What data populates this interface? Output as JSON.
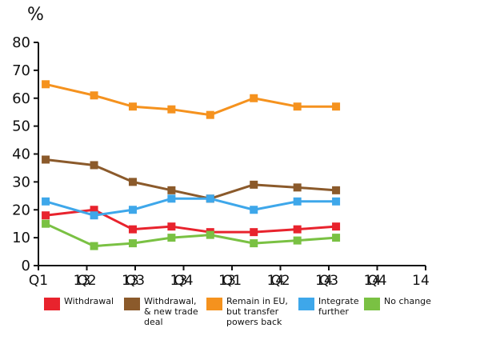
{
  "unit_label": "%",
  "chart_data": {
    "type": "line",
    "categories": [
      "Q1 13",
      "Q2 13",
      "Q3 13",
      "Q4 13",
      "Q1 14",
      "Q2 14",
      "Q3 14",
      "Q4 14"
    ],
    "ylim": [
      0,
      80
    ],
    "yticks": [
      0,
      10,
      20,
      30,
      40,
      50,
      60,
      70,
      80
    ],
    "grid": false,
    "legend_position": "bottom",
    "series": [
      {
        "name": "Withdrawal",
        "color": "#e8232d",
        "x": [
          0.15,
          1.15,
          1.95,
          2.75,
          3.55,
          4.45,
          5.35,
          6.15
        ],
        "values": [
          18,
          20,
          13,
          14,
          12,
          12,
          13,
          14
        ]
      },
      {
        "name": "Withdrawal,\n& new trade\ndeal",
        "color": "#8b5a2b",
        "x": [
          0.15,
          1.15,
          1.95,
          2.75,
          3.55,
          4.45,
          5.35,
          6.15
        ],
        "values": [
          38,
          36,
          30,
          27,
          24,
          29,
          28,
          27
        ]
      },
      {
        "name": "Remain in EU,\nbut transfer\npowers back",
        "color": "#f5921e",
        "x": [
          0.15,
          1.15,
          1.95,
          2.75,
          3.55,
          4.45,
          5.35,
          6.15
        ],
        "values": [
          65,
          61,
          57,
          56,
          54,
          60,
          57,
          57
        ]
      },
      {
        "name": "Integrate\nfurther",
        "color": "#3ea7ea",
        "x": [
          0.15,
          1.15,
          1.95,
          2.75,
          3.55,
          4.45,
          5.35,
          6.15
        ],
        "values": [
          23,
          18,
          20,
          24,
          24,
          20,
          23,
          23
        ]
      },
      {
        "name": "No change",
        "color": "#7ac143",
        "x": [
          0.15,
          1.15,
          1.95,
          2.75,
          3.55,
          4.45,
          5.35,
          6.15
        ],
        "values": [
          15,
          7,
          8,
          10,
          11,
          8,
          9,
          10
        ]
      }
    ]
  }
}
